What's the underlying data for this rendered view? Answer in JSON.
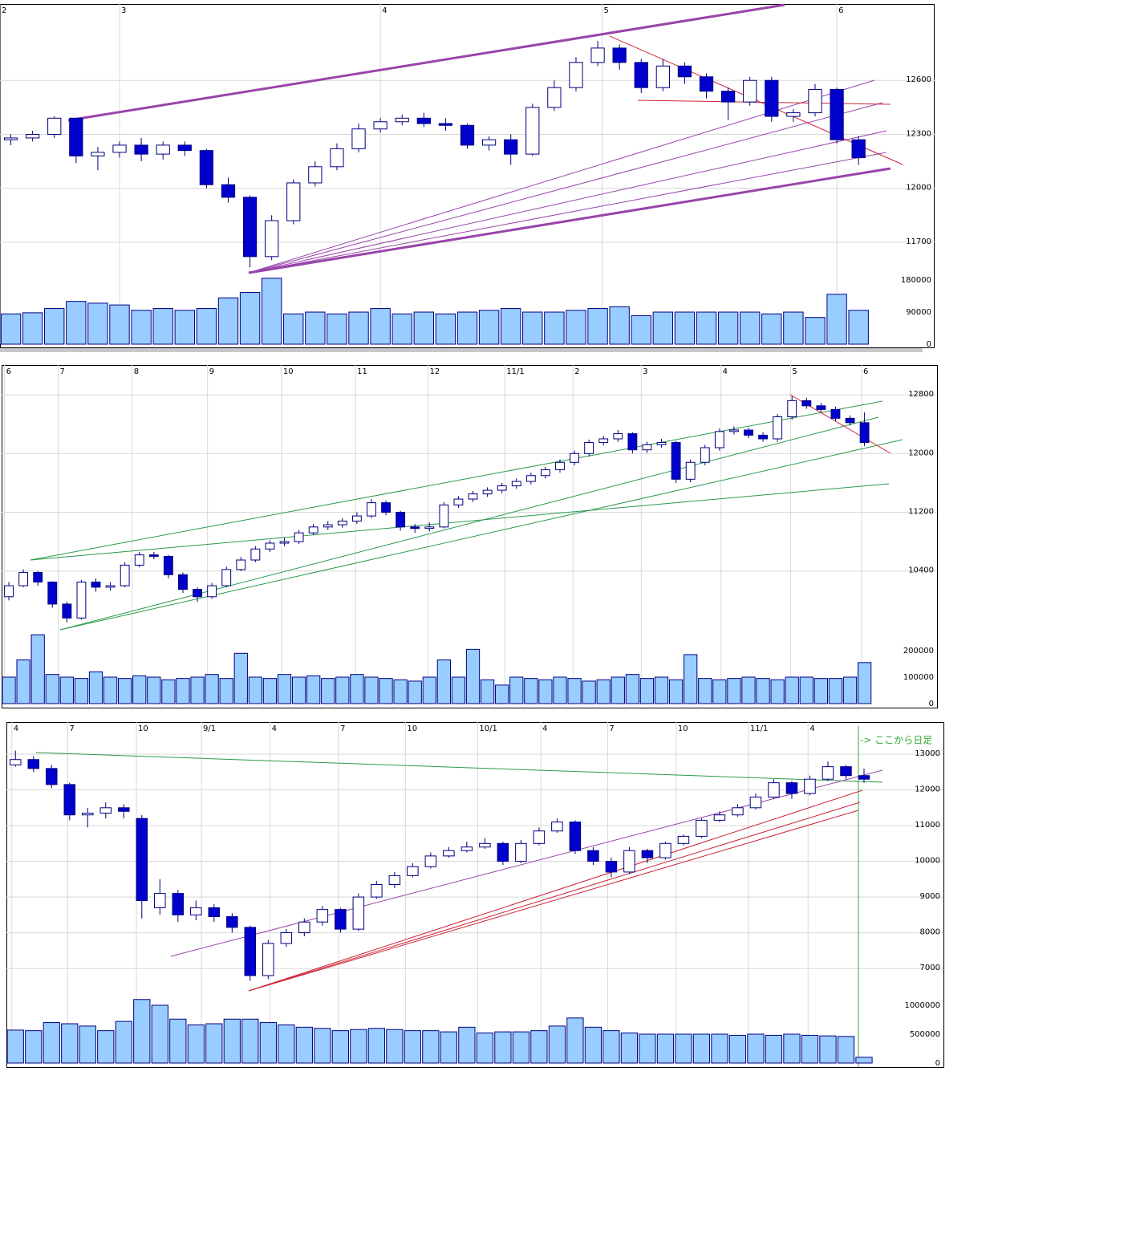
{
  "chart_data": [
    {
      "type": "candlestick",
      "grid": true,
      "colors": {
        "up": "#ffffff",
        "down": "#0000cc",
        "outline": "#000080",
        "volume": "#99ccff"
      },
      "xlim": [
        -0.5,
        42.5
      ],
      "xticks": [
        {
          "value": -0.5,
          "label": "2"
        },
        {
          "value": 5,
          "label": "3"
        },
        {
          "value": 17,
          "label": "4"
        },
        {
          "value": 27.2,
          "label": "5"
        },
        {
          "value": 38,
          "label": "6"
        }
      ],
      "ylim": [
        11530,
        13025
      ],
      "yticks": [
        11700,
        12000,
        12300,
        12600
      ],
      "volume_ylim": [
        0,
        189000
      ],
      "volume_yticks": [
        0,
        90000,
        180000
      ],
      "ohlc": [
        [
          12270,
          12300,
          12240,
          12280
        ],
        [
          12280,
          12320,
          12260,
          12300
        ],
        [
          12300,
          12400,
          12280,
          12390
        ],
        [
          12390,
          12390,
          12140,
          12180
        ],
        [
          12180,
          12230,
          12100,
          12200
        ],
        [
          12200,
          12260,
          12170,
          12240
        ],
        [
          12240,
          12280,
          12150,
          12190
        ],
        [
          12190,
          12260,
          12160,
          12240
        ],
        [
          12240,
          12260,
          12180,
          12210
        ],
        [
          12210,
          12220,
          12000,
          12020
        ],
        [
          12020,
          12060,
          11920,
          11950
        ],
        [
          11950,
          11960,
          11560,
          11620
        ],
        [
          11620,
          11850,
          11600,
          11820
        ],
        [
          11820,
          12050,
          11800,
          12030
        ],
        [
          12030,
          12150,
          12010,
          12120
        ],
        [
          12120,
          12250,
          12100,
          12220
        ],
        [
          12220,
          12360,
          12200,
          12330
        ],
        [
          12330,
          12390,
          12310,
          12370
        ],
        [
          12370,
          12410,
          12350,
          12390
        ],
        [
          12390,
          12420,
          12340,
          12360
        ],
        [
          12360,
          12390,
          12320,
          12350
        ],
        [
          12350,
          12360,
          12220,
          12240
        ],
        [
          12240,
          12290,
          12210,
          12270
        ],
        [
          12270,
          12300,
          12130,
          12190
        ],
        [
          12190,
          12470,
          12180,
          12450
        ],
        [
          12450,
          12600,
          12430,
          12560
        ],
        [
          12560,
          12730,
          12540,
          12700
        ],
        [
          12700,
          12820,
          12680,
          12780
        ],
        [
          12780,
          12800,
          12660,
          12700
        ],
        [
          12700,
          12720,
          12530,
          12560
        ],
        [
          12560,
          12720,
          12540,
          12680
        ],
        [
          12680,
          12700,
          12580,
          12620
        ],
        [
          12620,
          12640,
          12500,
          12540
        ],
        [
          12540,
          12560,
          12380,
          12480
        ],
        [
          12480,
          12620,
          12460,
          12600
        ],
        [
          12600,
          12620,
          12370,
          12400
        ],
        [
          12400,
          12440,
          12370,
          12420
        ],
        [
          12420,
          12580,
          12400,
          12550
        ],
        [
          12550,
          12560,
          12250,
          12270
        ],
        [
          12270,
          12290,
          12130,
          12170
        ]
      ],
      "volume": [
        85000,
        88000,
        100000,
        120000,
        115000,
        110000,
        95000,
        100000,
        95000,
        100000,
        130000,
        145000,
        185000,
        85000,
        90000,
        85000,
        90000,
        100000,
        85000,
        90000,
        85000,
        90000,
        95000,
        100000,
        90000,
        90000,
        95000,
        100000,
        105000,
        80000,
        90000,
        90000,
        90000,
        90000,
        90000,
        85000,
        90000,
        75000,
        140000,
        95000
      ]
    },
    {
      "type": "candlestick",
      "grid": true,
      "colors": {
        "up": "#ffffff",
        "down": "#0000cc",
        "outline": "#000080",
        "volume": "#99ccff"
      },
      "xlim": [
        -0.5,
        64
      ],
      "xticks": [
        {
          "value": -0.3,
          "label": "6"
        },
        {
          "value": 3.4,
          "label": "7"
        },
        {
          "value": 8.5,
          "label": "8"
        },
        {
          "value": 13.7,
          "label": "9"
        },
        {
          "value": 18.8,
          "label": "10"
        },
        {
          "value": 23.9,
          "label": "11"
        },
        {
          "value": 28.9,
          "label": "12"
        },
        {
          "value": 34.2,
          "label": "11/1"
        },
        {
          "value": 38.9,
          "label": "2"
        },
        {
          "value": 43.6,
          "label": "3"
        },
        {
          "value": 49.1,
          "label": "4"
        },
        {
          "value": 53.9,
          "label": "5"
        },
        {
          "value": 58.8,
          "label": "6"
        }
      ],
      "ylim": [
        9545,
        13205
      ],
      "yticks": [
        10400,
        11200,
        12000,
        12800
      ],
      "volume_ylim": [
        0,
        263600
      ],
      "volume_yticks": [
        0,
        100000,
        200000
      ],
      "ohlc": [
        [
          10050,
          10250,
          10000,
          10200
        ],
        [
          10200,
          10420,
          10180,
          10380
        ],
        [
          10380,
          10400,
          10200,
          10250
        ],
        [
          10250,
          10260,
          9900,
          9950
        ],
        [
          9950,
          9980,
          9700,
          9760
        ],
        [
          9760,
          10280,
          9740,
          10250
        ],
        [
          10250,
          10300,
          10120,
          10180
        ],
        [
          10180,
          10250,
          10130,
          10200
        ],
        [
          10200,
          10520,
          10180,
          10480
        ],
        [
          10480,
          10660,
          10450,
          10620
        ],
        [
          10620,
          10660,
          10560,
          10600
        ],
        [
          10600,
          10620,
          10300,
          10350
        ],
        [
          10350,
          10380,
          10100,
          10150
        ],
        [
          10150,
          10180,
          9980,
          10050
        ],
        [
          10050,
          10240,
          10020,
          10200
        ],
        [
          10200,
          10460,
          10180,
          10420
        ],
        [
          10420,
          10590,
          10400,
          10550
        ],
        [
          10550,
          10740,
          10520,
          10700
        ],
        [
          10700,
          10820,
          10660,
          10780
        ],
        [
          10780,
          10850,
          10740,
          10800
        ],
        [
          10800,
          10960,
          10770,
          10920
        ],
        [
          10920,
          11040,
          10890,
          11000
        ],
        [
          11000,
          11080,
          10960,
          11030
        ],
        [
          11030,
          11120,
          10990,
          11080
        ],
        [
          11080,
          11200,
          11040,
          11150
        ],
        [
          11150,
          11380,
          11120,
          11330
        ],
        [
          11330,
          11360,
          11160,
          11200
        ],
        [
          11200,
          11220,
          10950,
          11000
        ],
        [
          11000,
          11040,
          10920,
          10980
        ],
        [
          10980,
          11060,
          10940,
          11000
        ],
        [
          11000,
          11340,
          10980,
          11300
        ],
        [
          11300,
          11420,
          11260,
          11380
        ],
        [
          11380,
          11490,
          11340,
          11450
        ],
        [
          11450,
          11540,
          11410,
          11500
        ],
        [
          11500,
          11600,
          11460,
          11560
        ],
        [
          11560,
          11660,
          11520,
          11620
        ],
        [
          11620,
          11740,
          11580,
          11700
        ],
        [
          11700,
          11820,
          11660,
          11780
        ],
        [
          11780,
          11920,
          11740,
          11880
        ],
        [
          11880,
          12040,
          11840,
          12000
        ],
        [
          12000,
          12190,
          11960,
          12150
        ],
        [
          12150,
          12240,
          12110,
          12200
        ],
        [
          12200,
          12320,
          12160,
          12270
        ],
        [
          12270,
          12290,
          12000,
          12050
        ],
        [
          12050,
          12160,
          12010,
          12120
        ],
        [
          12120,
          12200,
          12080,
          12150
        ],
        [
          12150,
          12170,
          11600,
          11650
        ],
        [
          11650,
          11920,
          11610,
          11880
        ],
        [
          11880,
          12120,
          11840,
          12080
        ],
        [
          12080,
          12340,
          12040,
          12300
        ],
        [
          12300,
          12370,
          12260,
          12320
        ],
        [
          12320,
          12350,
          12210,
          12250
        ],
        [
          12250,
          12290,
          12160,
          12200
        ],
        [
          12200,
          12540,
          12160,
          12500
        ],
        [
          12500,
          12780,
          12460,
          12720
        ],
        [
          12720,
          12760,
          12610,
          12650
        ],
        [
          12650,
          12690,
          12560,
          12600
        ],
        [
          12600,
          12640,
          12440,
          12480
        ],
        [
          12480,
          12520,
          12380,
          12420
        ],
        [
          12420,
          12560,
          12100,
          12150
        ]
      ],
      "volume": [
        100000,
        165000,
        260000,
        110000,
        100000,
        95000,
        120000,
        100000,
        95000,
        105000,
        100000,
        90000,
        95000,
        100000,
        110000,
        95000,
        190000,
        100000,
        95000,
        110000,
        100000,
        105000,
        95000,
        100000,
        110000,
        100000,
        95000,
        90000,
        85000,
        100000,
        165000,
        100000,
        205000,
        90000,
        70000,
        100000,
        95000,
        90000,
        100000,
        95000,
        85000,
        90000,
        100000,
        110000,
        95000,
        100000,
        90000,
        185000,
        95000,
        90000,
        95000,
        100000,
        95000,
        90000,
        100000,
        100000,
        95000,
        95000,
        100000,
        155000
      ]
    },
    {
      "type": "candlestick",
      "grid": true,
      "colors": {
        "up": "#ffffff",
        "down": "#0000cc",
        "outline": "#000080",
        "volume": "#99ccff"
      },
      "annotation": "-> ここから日足",
      "xlim": [
        -0.5,
        51.4
      ],
      "xticks": [
        {
          "value": -0.2,
          "label": "4"
        },
        {
          "value": 2.9,
          "label": "7"
        },
        {
          "value": 6.7,
          "label": "10"
        },
        {
          "value": 10.3,
          "label": "9/1"
        },
        {
          "value": 14.1,
          "label": "4"
        },
        {
          "value": 17.9,
          "label": "7"
        },
        {
          "value": 21.6,
          "label": "10"
        },
        {
          "value": 25.6,
          "label": "10/1"
        },
        {
          "value": 29.1,
          "label": "4"
        },
        {
          "value": 32.8,
          "label": "7"
        },
        {
          "value": 36.6,
          "label": "10"
        },
        {
          "value": 40.6,
          "label": "11/1"
        },
        {
          "value": 43.9,
          "label": "4"
        }
      ],
      "ylim": [
        6260,
        13900
      ],
      "yticks": [
        7000,
        8000,
        9000,
        10000,
        11000,
        12000,
        13000
      ],
      "volume_ylim": [
        0,
        1180000
      ],
      "volume_yticks": [
        0,
        500000,
        1000000
      ],
      "ohlc": [
        [
          12700,
          13100,
          12650,
          12850
        ],
        [
          12850,
          12950,
          12500,
          12600
        ],
        [
          12600,
          12700,
          12050,
          12150
        ],
        [
          12150,
          12200,
          11150,
          11300
        ],
        [
          11300,
          11500,
          10950,
          11350
        ],
        [
          11350,
          11650,
          11200,
          11500
        ],
        [
          11500,
          11600,
          11200,
          11400
        ],
        [
          11200,
          11300,
          8400,
          8900
        ],
        [
          8700,
          9500,
          8500,
          9100
        ],
        [
          9100,
          9200,
          8300,
          8500
        ],
        [
          8500,
          8900,
          8350,
          8700
        ],
        [
          8700,
          8800,
          8300,
          8450
        ],
        [
          8450,
          8550,
          8000,
          8150
        ],
        [
          8150,
          8200,
          6650,
          6800
        ],
        [
          6800,
          7800,
          6700,
          7700
        ],
        [
          7700,
          8100,
          7600,
          8000
        ],
        [
          8000,
          8400,
          7900,
          8300
        ],
        [
          8300,
          8750,
          8200,
          8650
        ],
        [
          8650,
          8700,
          8000,
          8100
        ],
        [
          8100,
          9100,
          8050,
          9000
        ],
        [
          9000,
          9450,
          8950,
          9350
        ],
        [
          9350,
          9700,
          9250,
          9600
        ],
        [
          9600,
          9950,
          9550,
          9850
        ],
        [
          9850,
          10250,
          9800,
          10150
        ],
        [
          10150,
          10400,
          10100,
          10300
        ],
        [
          10300,
          10550,
          10250,
          10400
        ],
        [
          10400,
          10650,
          10350,
          10500
        ],
        [
          10500,
          10550,
          9900,
          10000
        ],
        [
          10000,
          10600,
          9950,
          10500
        ],
        [
          10500,
          10950,
          10450,
          10850
        ],
        [
          10850,
          11200,
          10800,
          11100
        ],
        [
          11100,
          11150,
          10200,
          10300
        ],
        [
          10300,
          10400,
          9900,
          10000
        ],
        [
          10000,
          10100,
          9550,
          9700
        ],
        [
          9700,
          10400,
          9650,
          10300
        ],
        [
          10300,
          10350,
          9950,
          10100
        ],
        [
          10100,
          10550,
          10050,
          10500
        ],
        [
          10500,
          10750,
          10450,
          10700
        ],
        [
          10700,
          11200,
          10650,
          11150
        ],
        [
          11150,
          11400,
          11100,
          11300
        ],
        [
          11300,
          11600,
          11250,
          11500
        ],
        [
          11500,
          11900,
          11450,
          11800
        ],
        [
          11800,
          12300,
          11750,
          12200
        ],
        [
          12200,
          12250,
          11750,
          11900
        ],
        [
          11900,
          12400,
          11850,
          12300
        ],
        [
          12300,
          12800,
          12250,
          12650
        ],
        [
          12650,
          12700,
          12300,
          12400
        ],
        [
          12400,
          12600,
          12200,
          12300
        ]
      ],
      "volume": [
        570000,
        560000,
        700000,
        680000,
        640000,
        560000,
        720000,
        1100000,
        1000000,
        760000,
        660000,
        680000,
        760000,
        760000,
        700000,
        660000,
        620000,
        600000,
        560000,
        580000,
        600000,
        580000,
        560000,
        560000,
        540000,
        620000,
        520000,
        540000,
        540000,
        560000,
        640000,
        780000,
        620000,
        560000,
        520000,
        500000,
        500000,
        500000,
        500000,
        500000,
        480000,
        500000,
        480000,
        500000,
        480000,
        470000,
        460000,
        100000
      ]
    }
  ]
}
